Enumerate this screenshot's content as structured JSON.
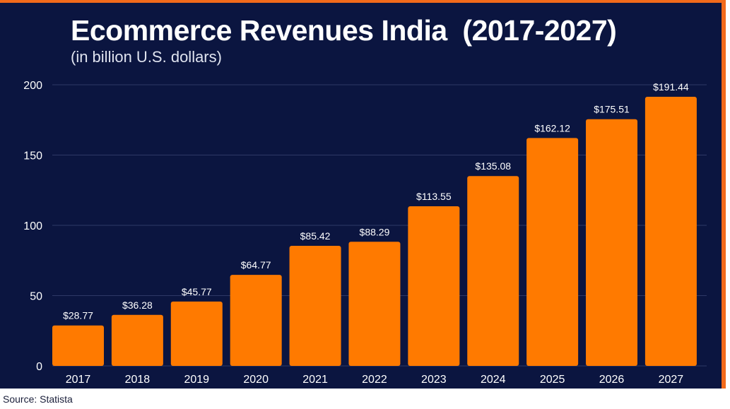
{
  "chart_data": {
    "type": "bar",
    "title": "Ecommerce Revenues India  (2017-2027)",
    "subtitle": "(in billion U.S. dollars)",
    "categories": [
      "2017",
      "2018",
      "2019",
      "2020",
      "2021",
      "2022",
      "2023",
      "2024",
      "2025",
      "2026",
      "2027"
    ],
    "values": [
      28.77,
      36.28,
      45.77,
      64.77,
      85.42,
      88.29,
      113.55,
      135.08,
      162.12,
      175.51,
      191.44
    ],
    "value_labels": [
      "$28.77",
      "$36.28",
      "$45.77",
      "$64.77",
      "$85.42",
      "$88.29",
      "$113.55",
      "$135.08",
      "$162.12",
      "$175.51",
      "$191.44"
    ],
    "y_ticks": [
      0,
      50,
      100,
      150,
      200
    ],
    "ylim": [
      0,
      200
    ],
    "grid": true,
    "xlabel": "",
    "ylabel": "",
    "colors": {
      "bar": "#ff7a00",
      "background": "#0b1540",
      "border": "#f26a1b",
      "grid": "#2e3966",
      "text": "#ffffff"
    }
  },
  "footer": {
    "source": "Source: Statista"
  }
}
